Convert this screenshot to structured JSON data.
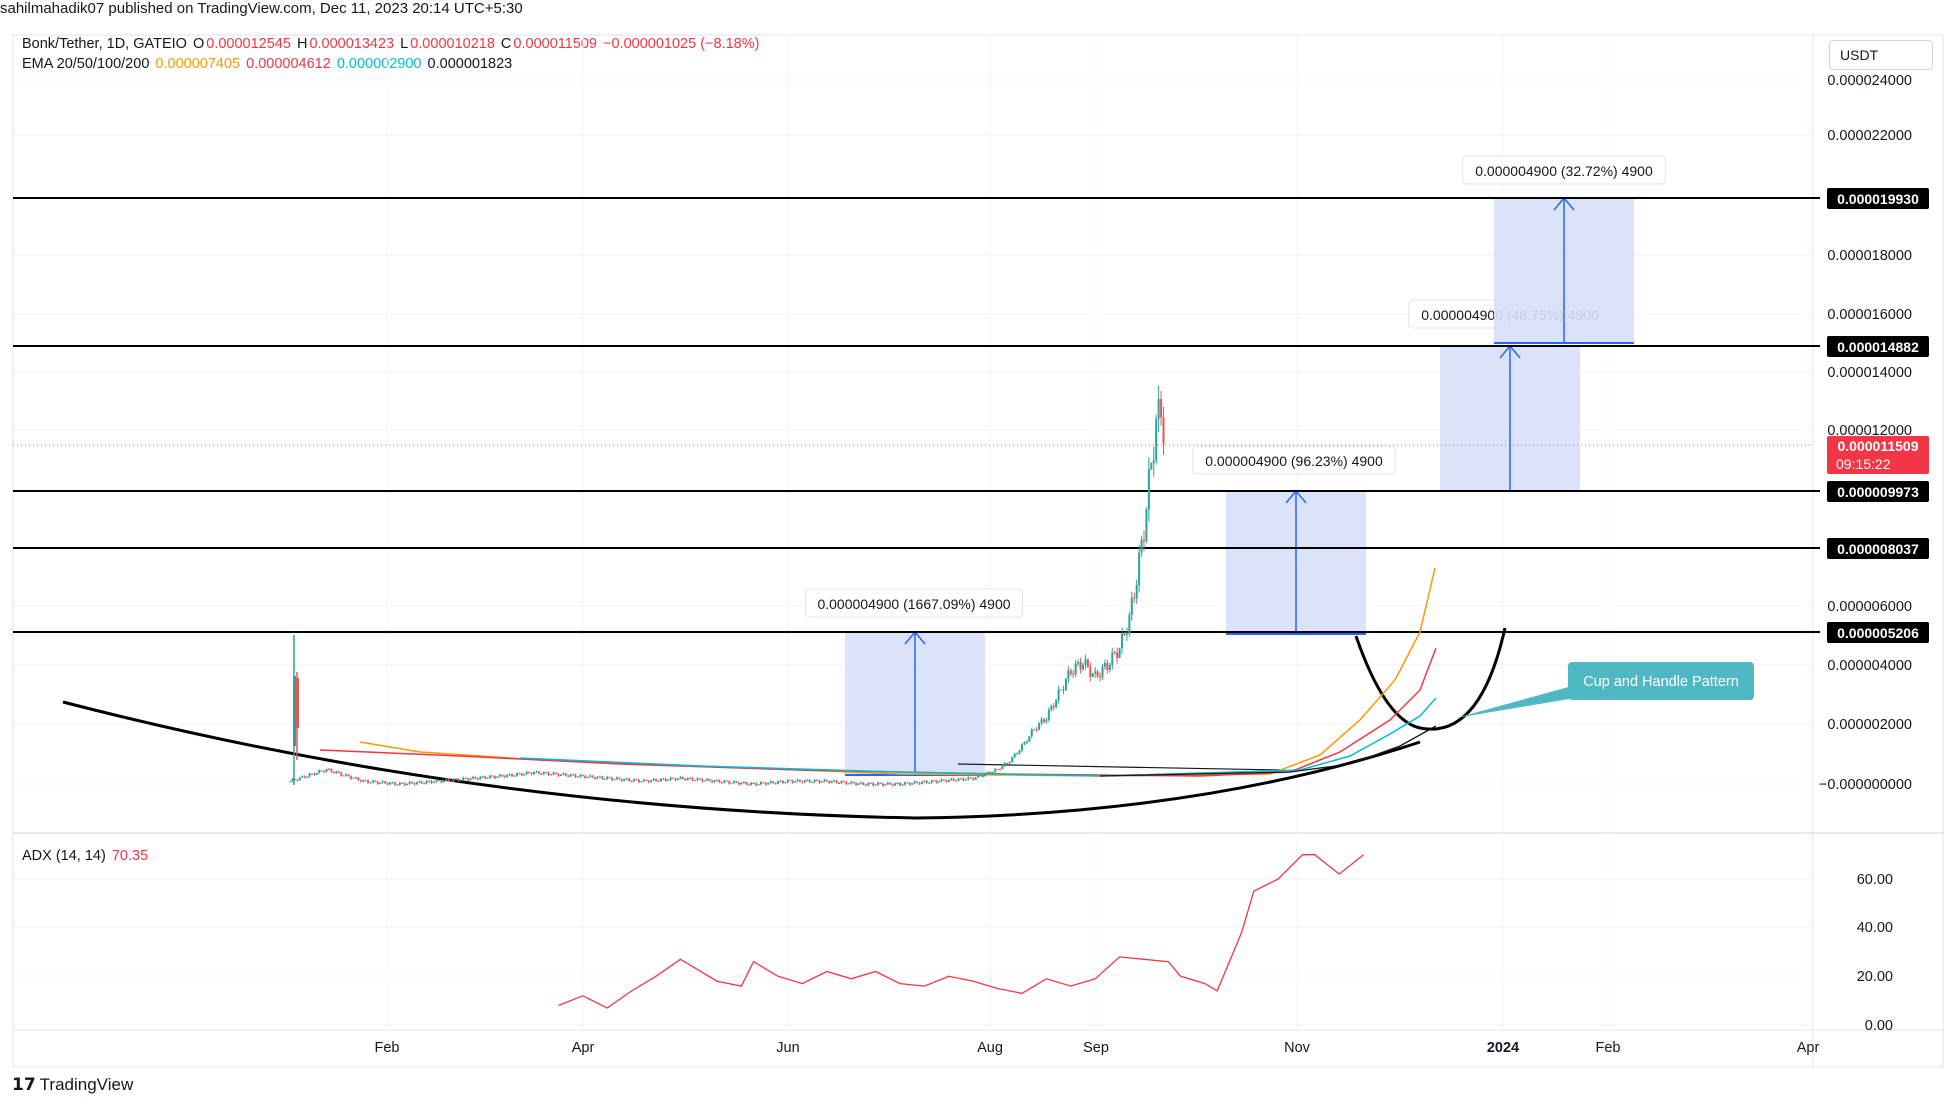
{
  "header": {
    "publisher_line": "sahilmahadik07 published on TradingView.com, Dec 11, 2023 20:14 UTC+5:30"
  },
  "legend": {
    "symbol": "Bonk/Tether, 1D, GATEIO",
    "o_label": "O",
    "o_value": "0.000012545",
    "h_label": "H",
    "h_value": "0.000013423",
    "l_label": "L",
    "l_value": "0.000010218",
    "c_label": "C",
    "c_value": "0.000011509",
    "change": "−0.000001025 (−8.18%)",
    "ema_label": "EMA 20/50/100/200",
    "ema20": "0.000007405",
    "ema50": "0.000004612",
    "ema100": "0.000002900",
    "ema200": "0.000001823"
  },
  "currency_button": "USDT",
  "adx": {
    "label": "ADX (14, 14)",
    "value": "70.35"
  },
  "branding": {
    "logo_glyph": "17",
    "logo_text": "TradingView"
  },
  "colors": {
    "bull": "#26a69a",
    "bear": "#ef5350",
    "ema20": "#ff9800",
    "ema50": "#f23645",
    "ema100": "#00bcd4",
    "ema200": "#131722",
    "adx": "#f23645",
    "measure_fill": "#d6e0f9",
    "measure_line": "#2962ff",
    "callout": "#4fb8c4",
    "price_tag": "#f23645"
  },
  "chart_data": {
    "type": "candlestick",
    "title": "Bonk/Tether, 1D, GATEIO",
    "price_axis": {
      "ticks": [
        "0.000024000",
        "0.000022000",
        "0.000018000",
        "0.000016000",
        "0.000014000",
        "0.000012000",
        "0.000006000",
        "0.000004000",
        "0.000002000",
        "−0.000000000"
      ]
    },
    "time_axis": {
      "ticks": [
        "Feb",
        "Apr",
        "Jun",
        "Aug",
        "Sep",
        "Nov",
        "2024",
        "Feb",
        "Apr"
      ]
    },
    "level_labels": [
      "0.000019930",
      "0.000014882",
      "0.000009973",
      "0.000008037",
      "0.000005206"
    ],
    "current_price": {
      "price": "0.000011509",
      "countdown": "09:15:22"
    },
    "measurements": [
      {
        "label": "0.000004900 (1667.09%) 4900"
      },
      {
        "label": "0.000004900 (96.23%) 4900"
      },
      {
        "label": "0.000004900 (48.75%) 4900"
      },
      {
        "label": "0.000004900 (32.72%) 4900"
      }
    ],
    "annotations": [
      "Cup and Handle Pattern"
    ],
    "price_series": [
      [
        0,
        2e-07
      ],
      [
        15,
        6e-07
      ],
      [
        30,
        2e-07
      ],
      [
        45,
        1e-07
      ],
      [
        60,
        2e-07
      ],
      [
        75,
        3e-07
      ],
      [
        90,
        4e-07
      ],
      [
        100,
        5e-07
      ],
      [
        115,
        4e-07
      ],
      [
        130,
        3e-07
      ],
      [
        145,
        2e-07
      ],
      [
        160,
        3e-07
      ],
      [
        175,
        2e-07
      ],
      [
        190,
        1e-07
      ],
      [
        205,
        2e-07
      ],
      [
        220,
        2e-07
      ],
      [
        235,
        1e-07
      ],
      [
        250,
        1e-07
      ],
      [
        265,
        2e-07
      ],
      [
        280,
        3e-07
      ],
      [
        290,
        6e-07
      ],
      [
        295,
        9e-07
      ],
      [
        300,
        1.4e-06
      ],
      [
        305,
        2e-06
      ],
      [
        310,
        2.4e-06
      ],
      [
        315,
        3.2e-06
      ],
      [
        320,
        4e-06
      ],
      [
        325,
        4.3e-06
      ],
      [
        330,
        3.8e-06
      ],
      [
        335,
        4.2e-06
      ],
      [
        340,
        4.8e-06
      ],
      [
        344,
        5.8e-06
      ],
      [
        347,
        7.2e-06
      ],
      [
        350,
        8.9e-06
      ],
      [
        353,
        1.12e-05
      ],
      [
        355,
        1.25e-05
      ],
      [
        357,
        1.31e-05
      ],
      [
        359,
        1.15e-05
      ]
    ],
    "adx_axis_ticks": [
      "60.00",
      "40.00",
      "20.00",
      "0.00"
    ],
    "adx_series": [
      [
        20,
        8
      ],
      [
        30,
        12
      ],
      [
        40,
        7
      ],
      [
        50,
        14
      ],
      [
        60,
        20
      ],
      [
        70,
        27
      ],
      [
        75,
        24
      ],
      [
        85,
        18
      ],
      [
        95,
        16
      ],
      [
        100,
        26
      ],
      [
        110,
        20
      ],
      [
        120,
        17
      ],
      [
        130,
        22
      ],
      [
        140,
        19
      ],
      [
        150,
        22
      ],
      [
        160,
        17
      ],
      [
        170,
        16
      ],
      [
        180,
        20
      ],
      [
        190,
        18
      ],
      [
        200,
        15
      ],
      [
        210,
        13
      ],
      [
        220,
        19
      ],
      [
        230,
        16
      ],
      [
        240,
        19
      ],
      [
        250,
        28
      ],
      [
        260,
        27
      ],
      [
        270,
        26
      ],
      [
        275,
        20
      ],
      [
        285,
        17
      ],
      [
        290,
        14
      ],
      [
        300,
        38
      ],
      [
        305,
        55
      ],
      [
        315,
        60
      ],
      [
        325,
        70
      ],
      [
        330,
        70
      ],
      [
        340,
        62
      ],
      [
        350,
        70
      ]
    ]
  }
}
